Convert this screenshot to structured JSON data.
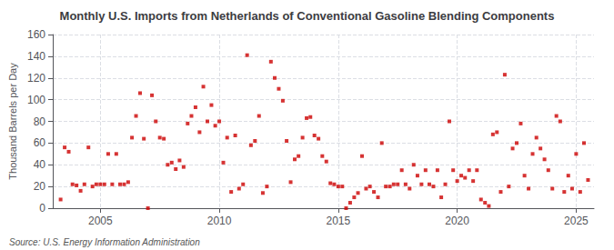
{
  "chart_data": {
    "type": "scatter",
    "title": "Monthly U.S. Imports from Netherlands of Conventional Gasoline Blending Components",
    "ylabel": "Thousand Barrels per Day",
    "annotations": [
      "Source: U.S. Energy Information Administration"
    ],
    "color": "#cc0000",
    "marker": "square",
    "grid": true,
    "xlim": [
      2003.0,
      2025.75
    ],
    "xticks": [
      2005,
      2010,
      2015,
      2020,
      2025
    ],
    "ylim": [
      0,
      160
    ],
    "yticks": [
      0,
      20,
      40,
      60,
      80,
      100,
      120,
      140,
      160
    ],
    "x": [
      2003.33,
      2003.5,
      2003.67,
      2003.83,
      2004.0,
      2004.17,
      2004.33,
      2004.5,
      2004.67,
      2004.83,
      2005.0,
      2005.17,
      2005.33,
      2005.5,
      2005.67,
      2005.83,
      2006.0,
      2006.17,
      2006.33,
      2006.5,
      2006.67,
      2006.83,
      2007.0,
      2007.17,
      2007.33,
      2007.5,
      2007.67,
      2007.83,
      2008.0,
      2008.17,
      2008.33,
      2008.5,
      2008.67,
      2008.83,
      2009.0,
      2009.17,
      2009.33,
      2009.5,
      2009.67,
      2009.83,
      2010.0,
      2010.17,
      2010.33,
      2010.5,
      2010.67,
      2010.83,
      2011.0,
      2011.17,
      2011.33,
      2011.5,
      2011.67,
      2011.83,
      2012.0,
      2012.17,
      2012.33,
      2012.5,
      2012.67,
      2012.83,
      2013.0,
      2013.17,
      2013.33,
      2013.5,
      2013.67,
      2013.83,
      2014.0,
      2014.17,
      2014.33,
      2014.5,
      2014.67,
      2014.83,
      2015.0,
      2015.17,
      2015.33,
      2015.5,
      2015.67,
      2015.83,
      2016.0,
      2016.17,
      2016.33,
      2016.5,
      2016.67,
      2016.83,
      2017.0,
      2017.17,
      2017.33,
      2017.5,
      2017.67,
      2017.83,
      2018.0,
      2018.17,
      2018.33,
      2018.5,
      2018.67,
      2018.83,
      2019.0,
      2019.17,
      2019.33,
      2019.5,
      2019.67,
      2019.83,
      2020.0,
      2020.17,
      2020.33,
      2020.5,
      2020.67,
      2020.83,
      2021.0,
      2021.17,
      2021.33,
      2021.5,
      2021.67,
      2021.83,
      2022.0,
      2022.17,
      2022.33,
      2022.5,
      2022.67,
      2022.83,
      2023.0,
      2023.17,
      2023.33,
      2023.5,
      2023.67,
      2023.83,
      2024.0,
      2024.17,
      2024.33,
      2024.5,
      2024.67,
      2024.83,
      2025.0,
      2025.17,
      2025.33,
      2025.5
    ],
    "values": [
      8,
      56,
      52,
      22,
      21,
      16,
      22,
      56,
      20,
      22,
      22,
      22,
      50,
      22,
      50,
      22,
      22,
      24,
      65,
      85,
      106,
      64,
      0,
      104,
      80,
      65,
      64,
      40,
      42,
      36,
      44,
      38,
      78,
      85,
      93,
      70,
      112,
      80,
      95,
      76,
      80,
      42,
      65,
      15,
      67,
      18,
      22,
      141,
      58,
      62,
      85,
      14,
      20,
      135,
      120,
      110,
      99,
      62,
      24,
      45,
      48,
      65,
      83,
      84,
      67,
      64,
      48,
      43,
      23,
      22,
      20,
      20,
      0,
      5,
      10,
      14,
      48,
      18,
      20,
      15,
      10,
      60,
      20,
      20,
      22,
      22,
      35,
      22,
      18,
      40,
      30,
      22,
      35,
      22,
      20,
      35,
      10,
      22,
      80,
      35,
      25,
      30,
      28,
      35,
      25,
      35,
      8,
      5,
      2,
      68,
      70,
      15,
      123,
      20,
      55,
      60,
      78,
      30,
      18,
      50,
      65,
      55,
      45,
      35,
      18,
      85,
      80,
      15,
      30,
      18,
      50,
      15,
      60,
      26
    ]
  }
}
